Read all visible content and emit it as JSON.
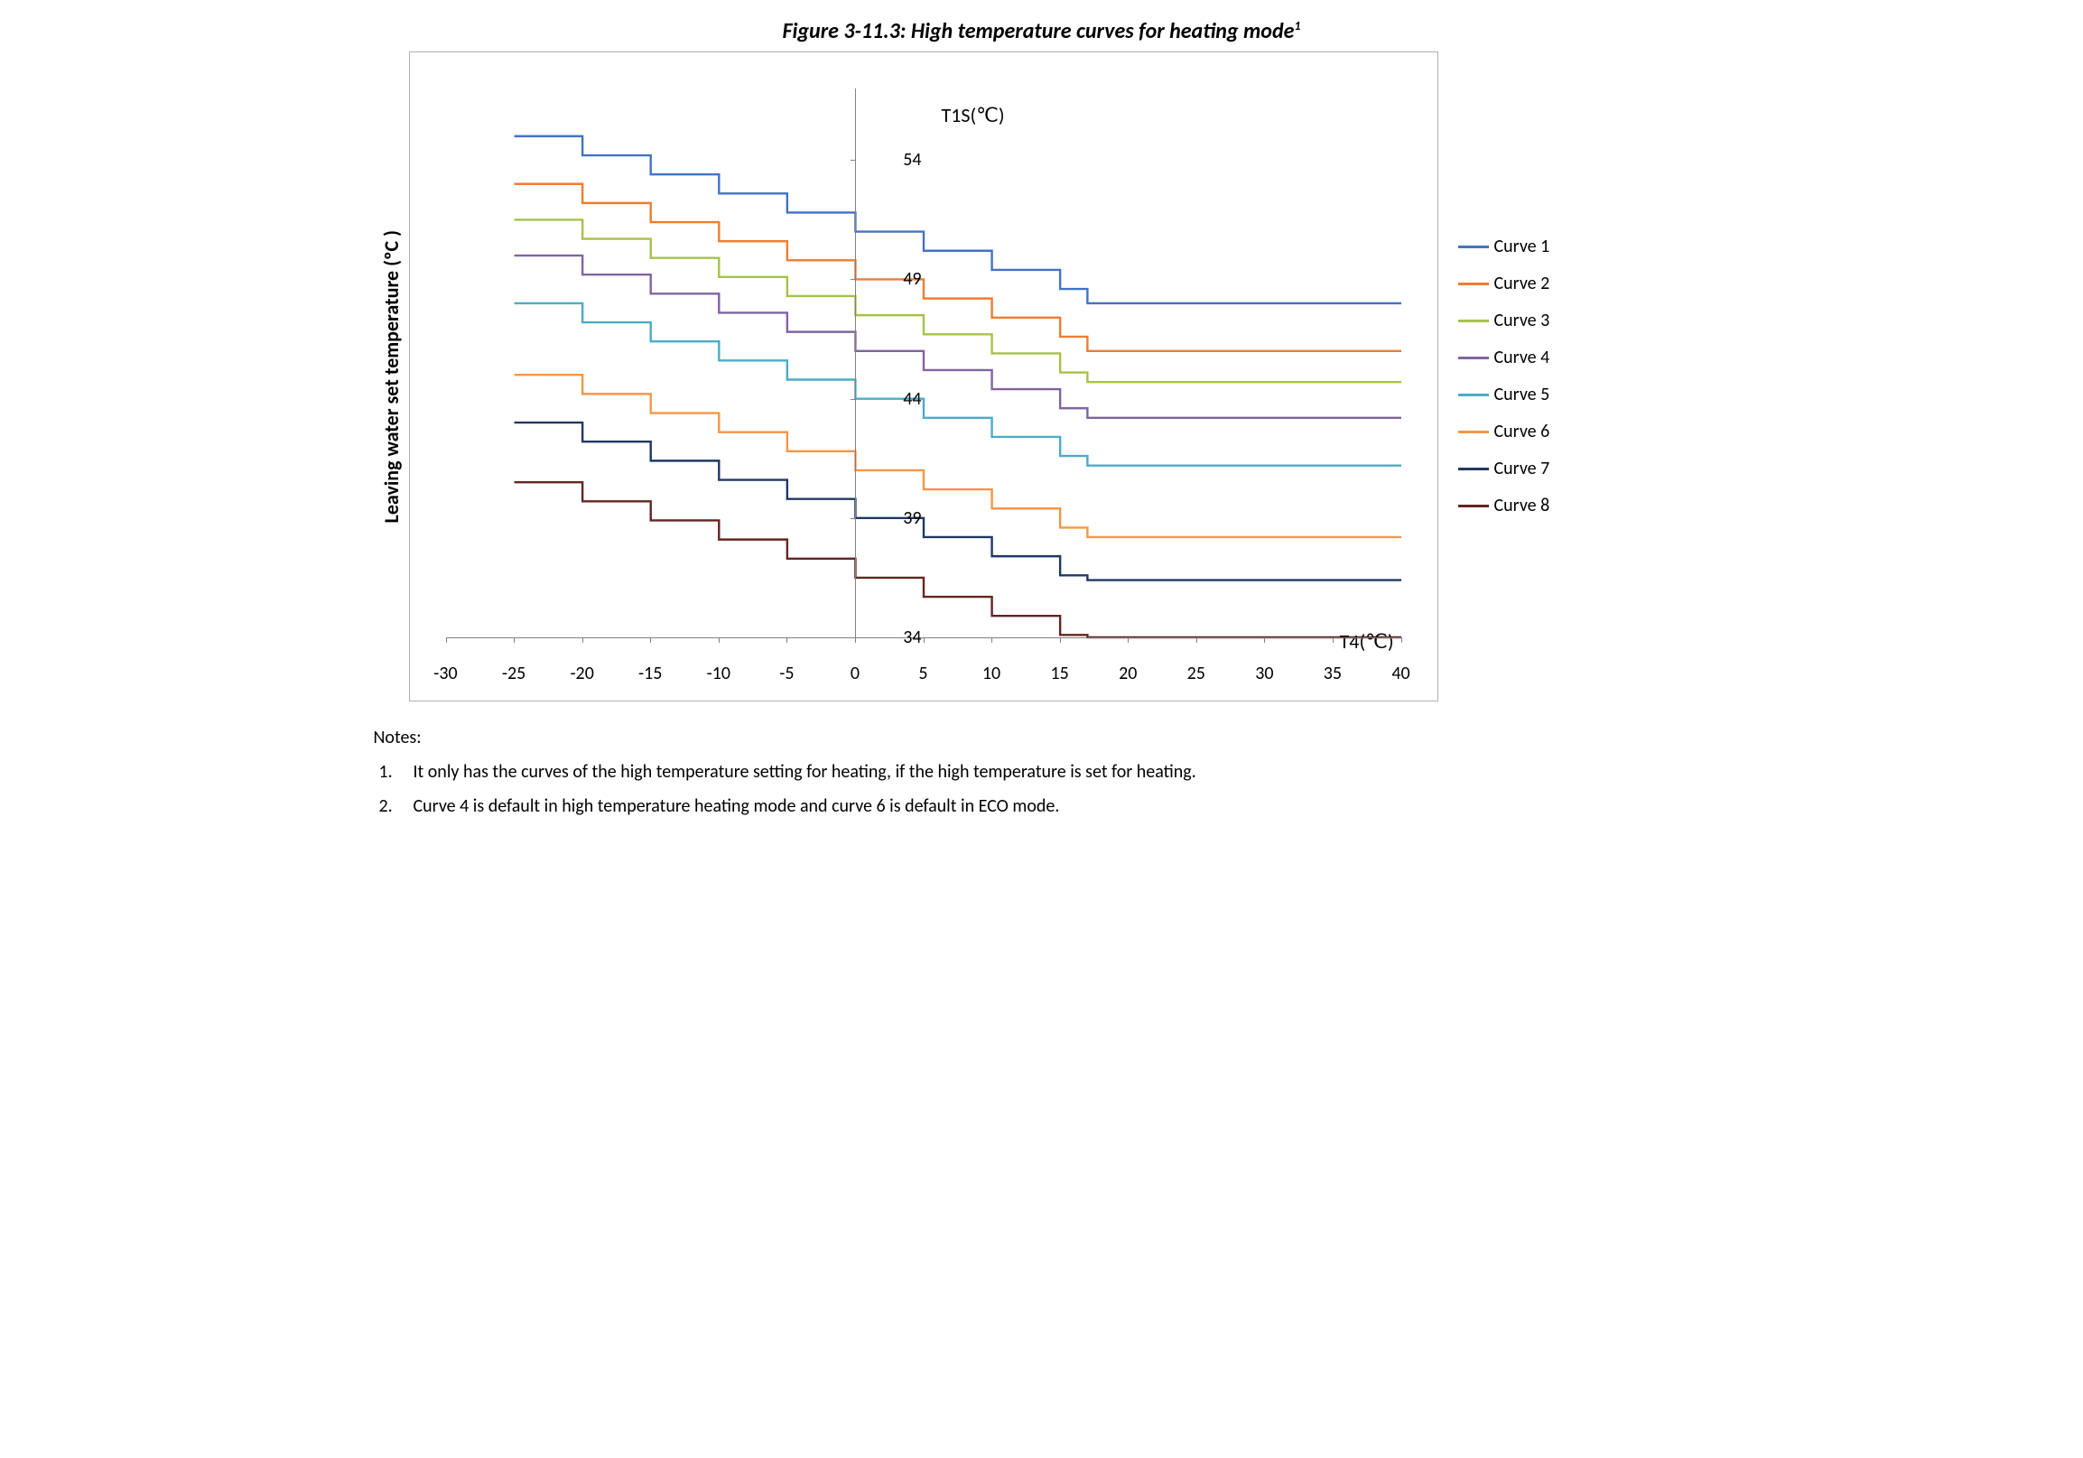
{
  "title_prefix": "Figure ",
  "title_num": "3-11.3",
  "title_rest": ": High temperature curves for heating mode",
  "title_sup": "1",
  "ylabel": "Leaving water set temperature (ºC )",
  "yaxis_inner_title": "T1S(℃)",
  "xaxis_inner_title": "T4(℃)",
  "chart": {
    "type": "step-line",
    "background_color": "#ffffff",
    "border_color": "#b0b0b0",
    "axis_color": "#808080",
    "x_min": -30,
    "x_max": 40,
    "y_min": 34,
    "y_max": 57,
    "x_ticks": [
      -30,
      -25,
      -20,
      -15,
      -10,
      -5,
      0,
      5,
      10,
      15,
      20,
      25,
      30,
      35,
      40
    ],
    "x_tick_labels": [
      "-30",
      "-25",
      "-20",
      "-15",
      "-10",
      "-5",
      "0",
      "5",
      "10",
      "15",
      "20",
      "25",
      "30",
      "35",
      "40"
    ],
    "y_ticks": [
      34,
      39,
      44,
      49,
      54
    ],
    "y_tick_labels": [
      "34",
      "39",
      "44",
      "49",
      "54"
    ],
    "line_width": 2.4,
    "series": [
      {
        "label": "Curve 1",
        "color": "#4472c4",
        "points": [
          [
            -25,
            55
          ],
          [
            -20,
            55
          ],
          [
            -20,
            54.2
          ],
          [
            -15,
            54.2
          ],
          [
            -15,
            53.4
          ],
          [
            -10,
            53.4
          ],
          [
            -10,
            52.6
          ],
          [
            -5,
            52.6
          ],
          [
            -5,
            51.8
          ],
          [
            0,
            51.8
          ],
          [
            0,
            51.0
          ],
          [
            5,
            51.0
          ],
          [
            5,
            50.2
          ],
          [
            10,
            50.2
          ],
          [
            10,
            49.4
          ],
          [
            15,
            49.4
          ],
          [
            15,
            48.6
          ],
          [
            17,
            48.6
          ],
          [
            17,
            48.0
          ],
          [
            40,
            48.0
          ]
        ]
      },
      {
        "label": "Curve 2",
        "color": "#ed7d31",
        "points": [
          [
            -25,
            53
          ],
          [
            -20,
            53
          ],
          [
            -20,
            52.2
          ],
          [
            -15,
            52.2
          ],
          [
            -15,
            51.4
          ],
          [
            -10,
            51.4
          ],
          [
            -10,
            50.6
          ],
          [
            -5,
            50.6
          ],
          [
            -5,
            49.8
          ],
          [
            0,
            49.8
          ],
          [
            0,
            49.0
          ],
          [
            5,
            49.0
          ],
          [
            5,
            48.2
          ],
          [
            10,
            48.2
          ],
          [
            10,
            47.4
          ],
          [
            15,
            47.4
          ],
          [
            15,
            46.6
          ],
          [
            17,
            46.6
          ],
          [
            17,
            46.0
          ],
          [
            40,
            46.0
          ]
        ]
      },
      {
        "label": "Curve 3",
        "color": "#a5c249",
        "points": [
          [
            -25,
            51.5
          ],
          [
            -20,
            51.5
          ],
          [
            -20,
            50.7
          ],
          [
            -15,
            50.7
          ],
          [
            -15,
            49.9
          ],
          [
            -10,
            49.9
          ],
          [
            -10,
            49.1
          ],
          [
            -5,
            49.1
          ],
          [
            -5,
            48.3
          ],
          [
            0,
            48.3
          ],
          [
            0,
            47.5
          ],
          [
            5,
            47.5
          ],
          [
            5,
            46.7
          ],
          [
            10,
            46.7
          ],
          [
            10,
            45.9
          ],
          [
            15,
            45.9
          ],
          [
            15,
            45.1
          ],
          [
            17,
            45.1
          ],
          [
            17,
            44.7
          ],
          [
            40,
            44.7
          ]
        ]
      },
      {
        "label": "Curve 4",
        "color": "#8064a2",
        "points": [
          [
            -25,
            50
          ],
          [
            -20,
            50
          ],
          [
            -20,
            49.2
          ],
          [
            -15,
            49.2
          ],
          [
            -15,
            48.4
          ],
          [
            -10,
            48.4
          ],
          [
            -10,
            47.6
          ],
          [
            -5,
            47.6
          ],
          [
            -5,
            46.8
          ],
          [
            0,
            46.8
          ],
          [
            0,
            46.0
          ],
          [
            5,
            46.0
          ],
          [
            5,
            45.2
          ],
          [
            10,
            45.2
          ],
          [
            10,
            44.4
          ],
          [
            15,
            44.4
          ],
          [
            15,
            43.6
          ],
          [
            17,
            43.6
          ],
          [
            17,
            43.2
          ],
          [
            40,
            43.2
          ]
        ]
      },
      {
        "label": "Curve 5",
        "color": "#4bacc6",
        "points": [
          [
            -25,
            48
          ],
          [
            -20,
            48
          ],
          [
            -20,
            47.2
          ],
          [
            -15,
            47.2
          ],
          [
            -15,
            46.4
          ],
          [
            -10,
            46.4
          ],
          [
            -10,
            45.6
          ],
          [
            -5,
            45.6
          ],
          [
            -5,
            44.8
          ],
          [
            0,
            44.8
          ],
          [
            0,
            44.0
          ],
          [
            5,
            44.0
          ],
          [
            5,
            43.2
          ],
          [
            10,
            43.2
          ],
          [
            10,
            42.4
          ],
          [
            15,
            42.4
          ],
          [
            15,
            41.6
          ],
          [
            17,
            41.6
          ],
          [
            17,
            41.2
          ],
          [
            40,
            41.2
          ]
        ]
      },
      {
        "label": "Curve 6",
        "color": "#f79646",
        "points": [
          [
            -25,
            45
          ],
          [
            -20,
            45
          ],
          [
            -20,
            44.2
          ],
          [
            -15,
            44.2
          ],
          [
            -15,
            43.4
          ],
          [
            -10,
            43.4
          ],
          [
            -10,
            42.6
          ],
          [
            -5,
            42.6
          ],
          [
            -5,
            41.8
          ],
          [
            0,
            41.8
          ],
          [
            0,
            41.0
          ],
          [
            5,
            41.0
          ],
          [
            5,
            40.2
          ],
          [
            10,
            40.2
          ],
          [
            10,
            39.4
          ],
          [
            15,
            39.4
          ],
          [
            15,
            38.6
          ],
          [
            17,
            38.6
          ],
          [
            17,
            38.2
          ],
          [
            40,
            38.2
          ]
        ]
      },
      {
        "label": "Curve 7",
        "color": "#1f3864",
        "points": [
          [
            -25,
            43
          ],
          [
            -20,
            43
          ],
          [
            -20,
            42.2
          ],
          [
            -15,
            42.2
          ],
          [
            -15,
            41.4
          ],
          [
            -10,
            41.4
          ],
          [
            -10,
            40.6
          ],
          [
            -5,
            40.6
          ],
          [
            -5,
            39.8
          ],
          [
            0,
            39.8
          ],
          [
            0,
            39.0
          ],
          [
            5,
            39.0
          ],
          [
            5,
            38.2
          ],
          [
            10,
            38.2
          ],
          [
            10,
            37.4
          ],
          [
            15,
            37.4
          ],
          [
            15,
            36.6
          ],
          [
            17,
            36.6
          ],
          [
            17,
            36.4
          ],
          [
            40,
            36.4
          ]
        ]
      },
      {
        "label": "Curve 8",
        "color": "#632523",
        "points": [
          [
            -25,
            40.5
          ],
          [
            -20,
            40.5
          ],
          [
            -20,
            39.7
          ],
          [
            -15,
            39.7
          ],
          [
            -15,
            38.9
          ],
          [
            -10,
            38.9
          ],
          [
            -10,
            38.1
          ],
          [
            -5,
            38.1
          ],
          [
            -5,
            37.3
          ],
          [
            0,
            37.3
          ],
          [
            0,
            36.5
          ],
          [
            5,
            36.5
          ],
          [
            5,
            35.7
          ],
          [
            10,
            35.7
          ],
          [
            10,
            34.9
          ],
          [
            15,
            34.9
          ],
          [
            15,
            34.1
          ],
          [
            17,
            34.1
          ],
          [
            17,
            34.0
          ],
          [
            40,
            34.0
          ]
        ]
      }
    ]
  },
  "notes_heading": "Notes:",
  "notes": [
    {
      "n": "1.",
      "t": "It only has the curves of the high temperature setting for heating, if the high temperature is set for heating."
    },
    {
      "n": "2.",
      "t": "Curve 4 is default in high temperature heating mode and curve 6 is default in ECO mode."
    }
  ]
}
